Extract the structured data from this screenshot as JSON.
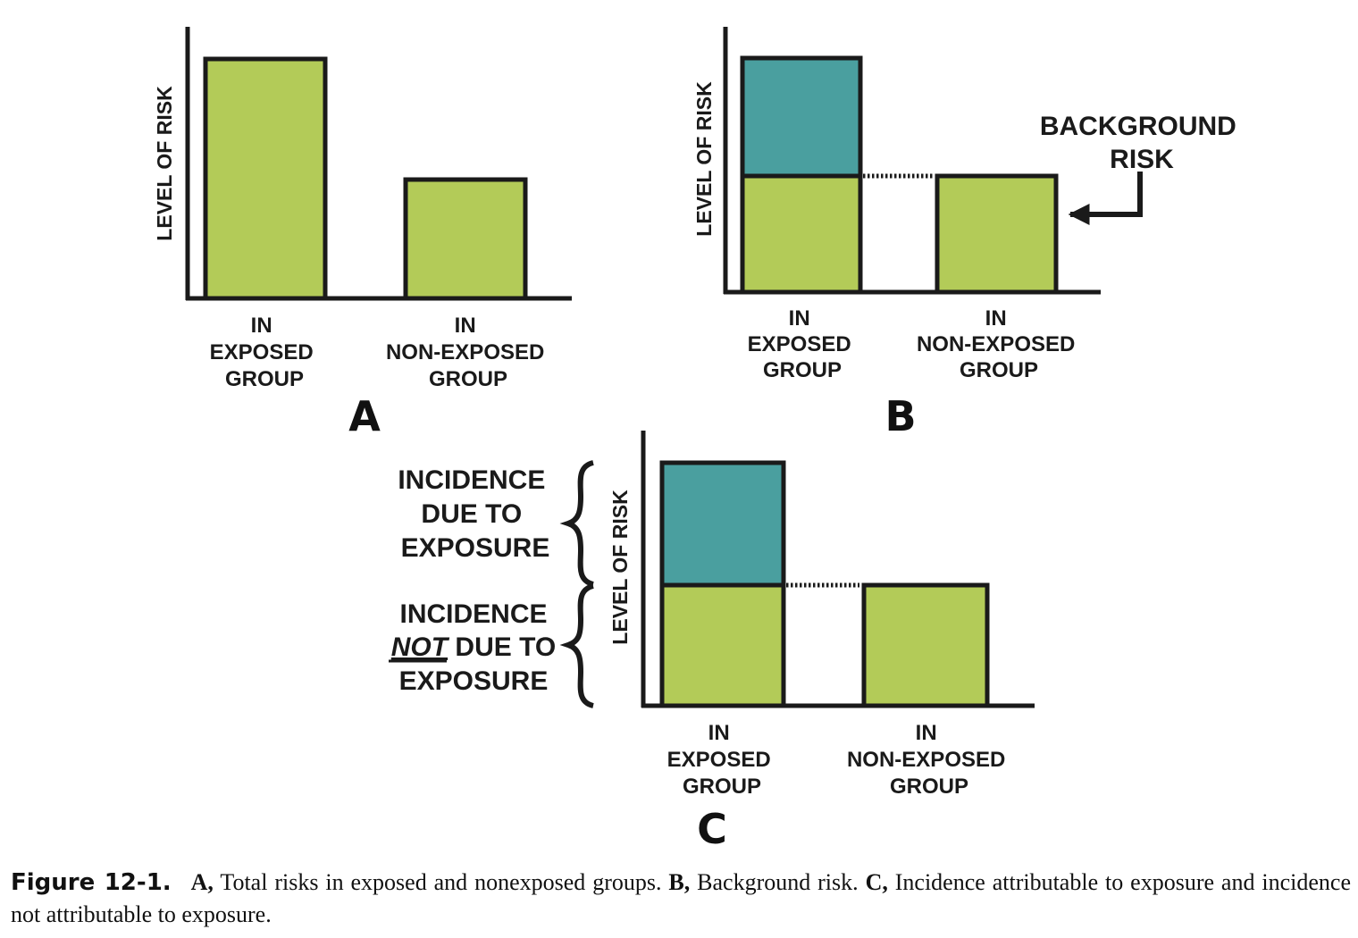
{
  "axis_title": "LEVEL OF RISK",
  "groups": {
    "exposed": [
      "IN",
      "EXPOSED",
      "GROUP"
    ],
    "nonexposed": [
      "IN",
      "NON-EXPOSED",
      "GROUP"
    ]
  },
  "panels": {
    "a": {
      "letter": "A"
    },
    "b": {
      "letter": "B",
      "callout": [
        "BACKGROUND",
        "RISK"
      ]
    },
    "c": {
      "letter": "C",
      "due": [
        "INCIDENCE",
        "DUE TO",
        "EXPOSURE"
      ],
      "not_due": {
        "line1": "INCIDENCE",
        "not_word": "NOT",
        "due_to": " DUE TO",
        "line3": "EXPOSURE"
      }
    }
  },
  "colors": {
    "green": "#b3cb58",
    "teal": "#4a9f9f",
    "stroke": "#1a1a1a"
  },
  "caption": {
    "label": "Figure 12-1.",
    "a_letter": "A,",
    "a_text": " Total risks in exposed and nonexposed groups. ",
    "b_letter": "B,",
    "b_text": " Background risk. ",
    "c_letter": "C,",
    "c_text": " Incidence attributable to exposure and incidence not attributable to exposure."
  }
}
